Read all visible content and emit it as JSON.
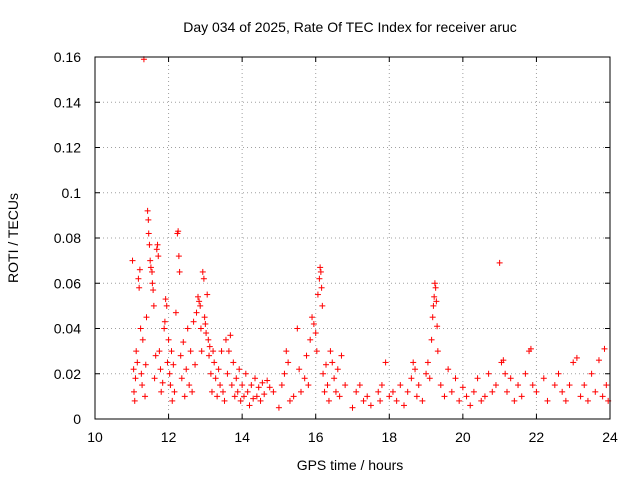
{
  "chart_data": {
    "type": "scatter",
    "title": "Day 034 of 2025, Rate Of TEC Index for receiver aruc",
    "xlabel": "GPS time / hours",
    "ylabel": "ROTI / TECUs",
    "xlim": [
      10,
      24
    ],
    "ylim": [
      0,
      0.16
    ],
    "x_ticks": [
      10,
      12,
      14,
      16,
      18,
      20,
      22,
      24
    ],
    "x_tick_labels": [
      "10",
      "12",
      "14",
      "16",
      "18",
      "20",
      "22",
      "24"
    ],
    "y_ticks": [
      0,
      0.02,
      0.04,
      0.06,
      0.08,
      0.1,
      0.12,
      0.14,
      0.16
    ],
    "y_tick_labels": [
      "0",
      "0.02",
      "0.04",
      "0.06",
      "0.08",
      "0.1",
      "0.12",
      "0.14",
      "0.16"
    ],
    "grid": true,
    "marker": "plus",
    "color": "#ff0000",
    "series": [
      {
        "points": [
          [
            11.02,
            0.07
          ],
          [
            11.05,
            0.022
          ],
          [
            11.06,
            0.012
          ],
          [
            11.08,
            0.008
          ],
          [
            11.1,
            0.018
          ],
          [
            11.12,
            0.03
          ],
          [
            11.15,
            0.025
          ],
          [
            11.18,
            0.062
          ],
          [
            11.2,
            0.058
          ],
          [
            11.22,
            0.066
          ],
          [
            11.24,
            0.04
          ],
          [
            11.26,
            0.02
          ],
          [
            11.28,
            0.015
          ],
          [
            11.3,
            0.035
          ],
          [
            11.33,
            0.159
          ],
          [
            11.36,
            0.01
          ],
          [
            11.38,
            0.024
          ],
          [
            11.4,
            0.045
          ],
          [
            11.43,
            0.092
          ],
          [
            11.45,
            0.088
          ],
          [
            11.46,
            0.082
          ],
          [
            11.48,
            0.077
          ],
          [
            11.5,
            0.07
          ],
          [
            11.52,
            0.067
          ],
          [
            11.55,
            0.065
          ],
          [
            11.56,
            0.06
          ],
          [
            11.58,
            0.057
          ],
          [
            11.6,
            0.05
          ],
          [
            11.62,
            0.018
          ],
          [
            11.65,
            0.028
          ],
          [
            11.68,
            0.075
          ],
          [
            11.7,
            0.077
          ],
          [
            11.72,
            0.072
          ],
          [
            11.75,
            0.03
          ],
          [
            11.78,
            0.022
          ],
          [
            11.8,
            0.012
          ],
          [
            11.84,
            0.016
          ],
          [
            11.88,
            0.04
          ],
          [
            11.9,
            0.043
          ],
          [
            11.92,
            0.053
          ],
          [
            11.95,
            0.05
          ],
          [
            11.97,
            0.025
          ],
          [
            12.0,
            0.035
          ],
          [
            12.03,
            0.02
          ],
          [
            12.05,
            0.015
          ],
          [
            12.08,
            0.03
          ],
          [
            12.1,
            0.008
          ],
          [
            12.13,
            0.024
          ],
          [
            12.16,
            0.012
          ],
          [
            12.2,
            0.047
          ],
          [
            12.24,
            0.082
          ],
          [
            12.26,
            0.083
          ],
          [
            12.28,
            0.072
          ],
          [
            12.3,
            0.065
          ],
          [
            12.33,
            0.028
          ],
          [
            12.36,
            0.018
          ],
          [
            12.4,
            0.034
          ],
          [
            12.44,
            0.01
          ],
          [
            12.48,
            0.022
          ],
          [
            12.52,
            0.04
          ],
          [
            12.56,
            0.015
          ],
          [
            12.6,
            0.03
          ],
          [
            12.64,
            0.012
          ],
          [
            12.68,
            0.043
          ],
          [
            12.72,
            0.024
          ],
          [
            12.76,
            0.047
          ],
          [
            12.8,
            0.054
          ],
          [
            12.83,
            0.052
          ],
          [
            12.86,
            0.05
          ],
          [
            12.88,
            0.04
          ],
          [
            12.9,
            0.03
          ],
          [
            12.93,
            0.065
          ],
          [
            12.96,
            0.062
          ],
          [
            12.98,
            0.045
          ],
          [
            13.0,
            0.042
          ],
          [
            13.02,
            0.038
          ],
          [
            13.05,
            0.055
          ],
          [
            13.08,
            0.035
          ],
          [
            13.1,
            0.028
          ],
          [
            13.12,
            0.032
          ],
          [
            13.15,
            0.02
          ],
          [
            13.18,
            0.012
          ],
          [
            13.21,
            0.03
          ],
          [
            13.24,
            0.025
          ],
          [
            13.28,
            0.018
          ],
          [
            13.32,
            0.01
          ],
          [
            13.36,
            0.022
          ],
          [
            13.4,
            0.015
          ],
          [
            13.44,
            0.03
          ],
          [
            13.48,
            0.012
          ],
          [
            13.52,
            0.008
          ],
          [
            13.56,
            0.035
          ],
          [
            13.6,
            0.02
          ],
          [
            13.64,
            0.03
          ],
          [
            13.68,
            0.037
          ],
          [
            13.72,
            0.015
          ],
          [
            13.76,
            0.025
          ],
          [
            13.8,
            0.01
          ],
          [
            13.84,
            0.018
          ],
          [
            13.88,
            0.012
          ],
          [
            13.92,
            0.022
          ],
          [
            13.96,
            0.008
          ],
          [
            14.0,
            0.015
          ],
          [
            14.05,
            0.01
          ],
          [
            14.1,
            0.02
          ],
          [
            14.15,
            0.012
          ],
          [
            14.2,
            0.006
          ],
          [
            14.25,
            0.015
          ],
          [
            14.3,
            0.009
          ],
          [
            14.35,
            0.018
          ],
          [
            14.4,
            0.01
          ],
          [
            14.45,
            0.014
          ],
          [
            14.5,
            0.008
          ],
          [
            14.55,
            0.016
          ],
          [
            14.6,
            0.011
          ],
          [
            14.68,
            0.017
          ],
          [
            14.75,
            0.014
          ],
          [
            14.85,
            0.012
          ],
          [
            15.0,
            0.005
          ],
          [
            15.08,
            0.015
          ],
          [
            15.15,
            0.02
          ],
          [
            15.2,
            0.03
          ],
          [
            15.25,
            0.025
          ],
          [
            15.3,
            0.008
          ],
          [
            15.4,
            0.01
          ],
          [
            15.5,
            0.04
          ],
          [
            15.55,
            0.022
          ],
          [
            15.6,
            0.012
          ],
          [
            15.7,
            0.018
          ],
          [
            15.75,
            0.028
          ],
          [
            15.8,
            0.015
          ],
          [
            15.85,
            0.035
          ],
          [
            15.9,
            0.045
          ],
          [
            15.95,
            0.042
          ],
          [
            16.0,
            0.038
          ],
          [
            16.03,
            0.03
          ],
          [
            16.06,
            0.055
          ],
          [
            16.1,
            0.062
          ],
          [
            16.12,
            0.067
          ],
          [
            16.14,
            0.065
          ],
          [
            16.16,
            0.058
          ],
          [
            16.18,
            0.05
          ],
          [
            16.2,
            0.02
          ],
          [
            16.24,
            0.012
          ],
          [
            16.28,
            0.024
          ],
          [
            16.32,
            0.015
          ],
          [
            16.36,
            0.008
          ],
          [
            16.4,
            0.03
          ],
          [
            16.45,
            0.025
          ],
          [
            16.5,
            0.018
          ],
          [
            16.55,
            0.012
          ],
          [
            16.6,
            0.022
          ],
          [
            16.65,
            0.01
          ],
          [
            16.7,
            0.028
          ],
          [
            16.8,
            0.015
          ],
          [
            17.0,
            0.005
          ],
          [
            17.1,
            0.012
          ],
          [
            17.2,
            0.015
          ],
          [
            17.3,
            0.008
          ],
          [
            17.4,
            0.01
          ],
          [
            17.5,
            0.006
          ],
          [
            17.7,
            0.012
          ],
          [
            17.75,
            0.008
          ],
          [
            17.8,
            0.015
          ],
          [
            17.9,
            0.025
          ],
          [
            18.0,
            0.01
          ],
          [
            18.1,
            0.012
          ],
          [
            18.2,
            0.008
          ],
          [
            18.3,
            0.015
          ],
          [
            18.4,
            0.006
          ],
          [
            18.5,
            0.012
          ],
          [
            18.6,
            0.018
          ],
          [
            18.65,
            0.025
          ],
          [
            18.7,
            0.022
          ],
          [
            18.75,
            0.01
          ],
          [
            18.8,
            0.015
          ],
          [
            18.9,
            0.008
          ],
          [
            19.0,
            0.02
          ],
          [
            19.05,
            0.025
          ],
          [
            19.1,
            0.018
          ],
          [
            19.15,
            0.035
          ],
          [
            19.18,
            0.045
          ],
          [
            19.2,
            0.05
          ],
          [
            19.22,
            0.054
          ],
          [
            19.24,
            0.06
          ],
          [
            19.26,
            0.058
          ],
          [
            19.28,
            0.052
          ],
          [
            19.3,
            0.041
          ],
          [
            19.32,
            0.03
          ],
          [
            19.4,
            0.015
          ],
          [
            19.5,
            0.01
          ],
          [
            19.6,
            0.022
          ],
          [
            19.7,
            0.012
          ],
          [
            19.8,
            0.018
          ],
          [
            19.9,
            0.008
          ],
          [
            20.0,
            0.014
          ],
          [
            20.1,
            0.01
          ],
          [
            20.2,
            0.006
          ],
          [
            20.3,
            0.012
          ],
          [
            20.4,
            0.018
          ],
          [
            20.5,
            0.008
          ],
          [
            20.6,
            0.01
          ],
          [
            20.7,
            0.02
          ],
          [
            20.8,
            0.012
          ],
          [
            20.9,
            0.015
          ],
          [
            21.0,
            0.069
          ],
          [
            21.05,
            0.025
          ],
          [
            21.1,
            0.026
          ],
          [
            21.15,
            0.02
          ],
          [
            21.2,
            0.012
          ],
          [
            21.3,
            0.018
          ],
          [
            21.4,
            0.008
          ],
          [
            21.5,
            0.015
          ],
          [
            21.6,
            0.01
          ],
          [
            21.7,
            0.02
          ],
          [
            21.8,
            0.03
          ],
          [
            21.85,
            0.031
          ],
          [
            21.9,
            0.015
          ],
          [
            22.0,
            0.012
          ],
          [
            22.2,
            0.018
          ],
          [
            22.3,
            0.008
          ],
          [
            22.5,
            0.015
          ],
          [
            22.6,
            0.02
          ],
          [
            22.7,
            0.012
          ],
          [
            22.8,
            0.008
          ],
          [
            22.9,
            0.015
          ],
          [
            23.0,
            0.025
          ],
          [
            23.1,
            0.027
          ],
          [
            23.2,
            0.01
          ],
          [
            23.3,
            0.015
          ],
          [
            23.4,
            0.008
          ],
          [
            23.5,
            0.02
          ],
          [
            23.6,
            0.012
          ],
          [
            23.7,
            0.026
          ],
          [
            23.8,
            0.01
          ],
          [
            23.85,
            0.031
          ],
          [
            23.9,
            0.015
          ],
          [
            23.95,
            0.008
          ]
        ]
      }
    ]
  }
}
